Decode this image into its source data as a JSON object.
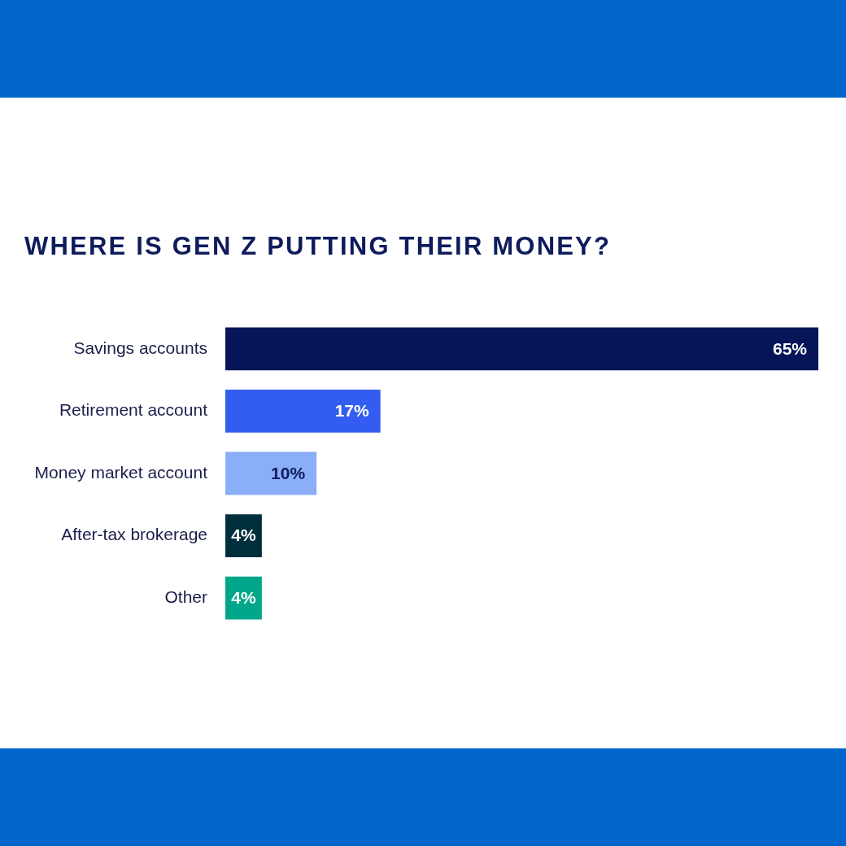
{
  "chart_data": {
    "type": "bar",
    "orientation": "horizontal",
    "title": "WHERE IS GEN Z PUTTING THEIR MONEY?",
    "categories": [
      "Savings accounts",
      "Retirement account",
      "Money market account",
      "After-tax brokerage",
      "Other"
    ],
    "values": [
      65,
      17,
      10,
      4,
      4
    ],
    "value_labels": [
      "65%",
      "17%",
      "10%",
      "4%",
      "4%"
    ],
    "colors": [
      "#061558",
      "#335cf0",
      "#8aaef7",
      "#002f3c",
      "#00a689"
    ],
    "xlim": [
      0,
      65
    ],
    "grid": false,
    "legend": false,
    "tick_labels": "y"
  }
}
